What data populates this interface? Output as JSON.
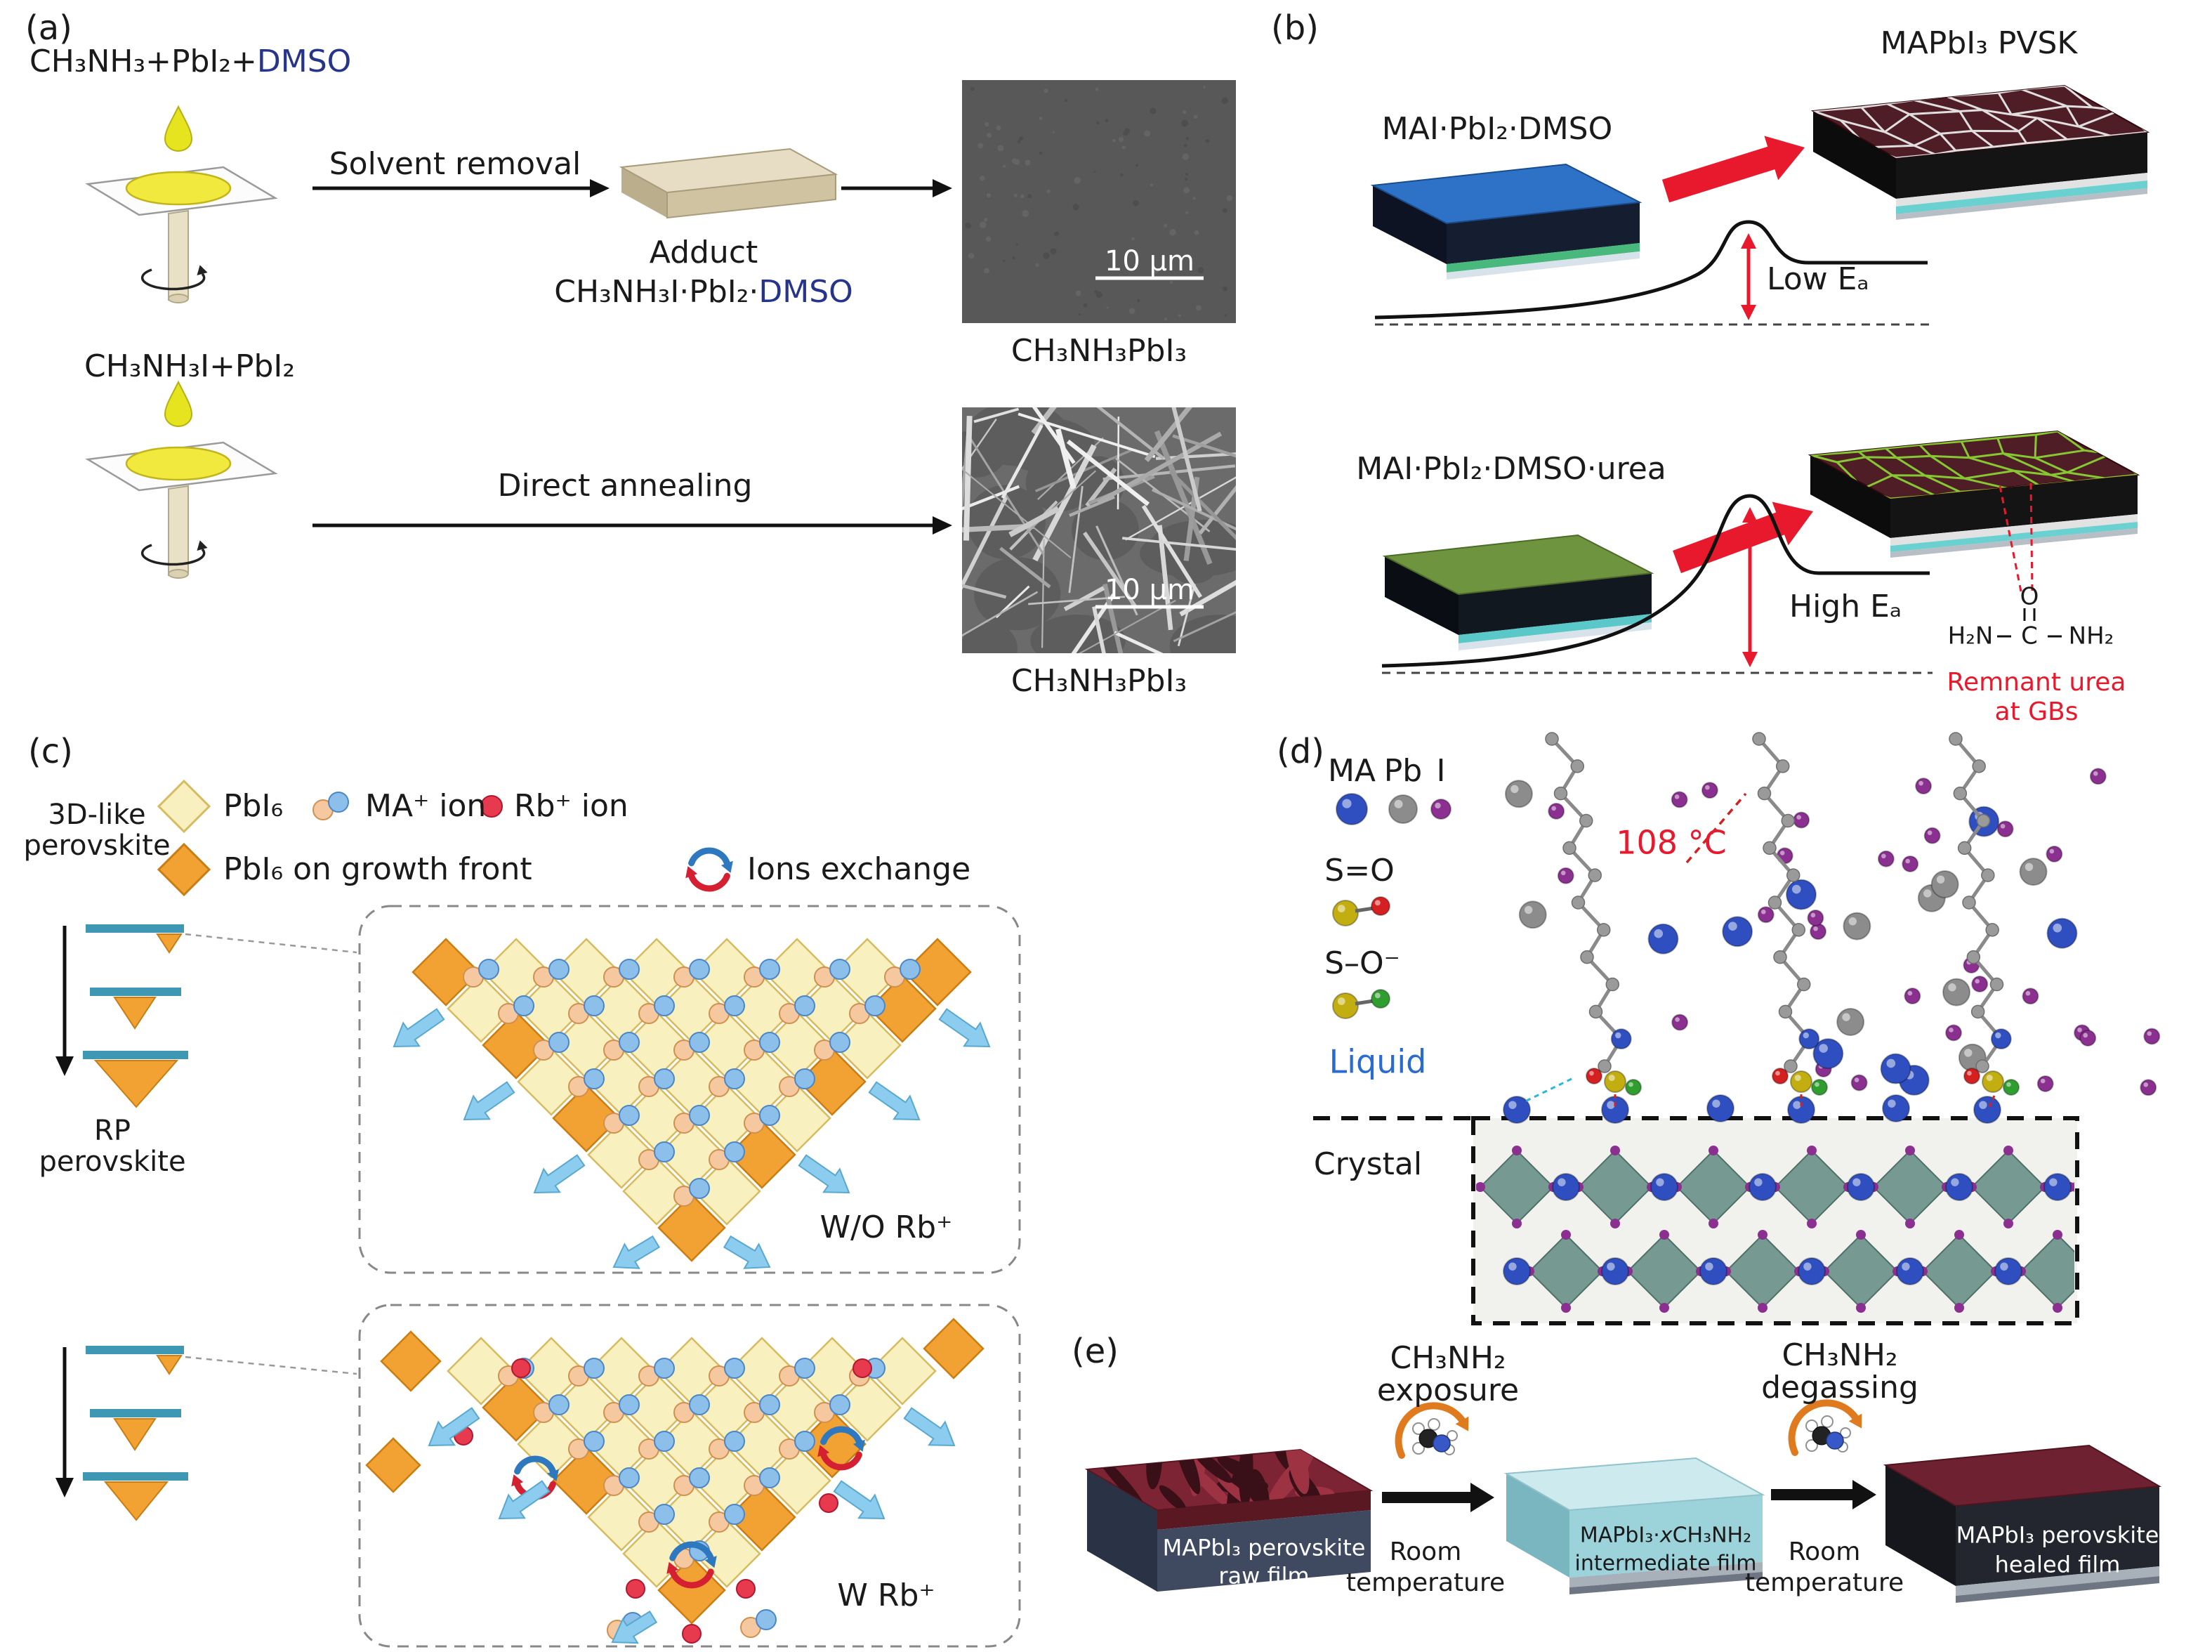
{
  "panels": {
    "a": {
      "label": "(a)",
      "formula_top_black": "CH₃NH₃+PbI₂+",
      "formula_top_blue": "DMSO",
      "solvent_removal": "Solvent removal",
      "adduct": "Adduct",
      "adduct_formula_black": "CH₃NH₃I·PbI₂·",
      "adduct_formula_blue": "DMSO",
      "sem1_scale": "10 μm",
      "sem1_product": "CH₃NH₃PbI₃",
      "formula_bottom": "CH₃NH₃I+PbI₂",
      "direct_annealing": "Direct annealing",
      "sem2_scale": "10 μm",
      "sem2_product": "CH₃NH₃PbI₃"
    },
    "b": {
      "label": "(b)",
      "precursor1": "MAI·PbI₂·DMSO",
      "product1": "MAPbI₃ PVSK",
      "low_ea": "Low Eₐ",
      "precursor2": "MAI·PbI₂·DMSO·urea",
      "high_ea": "High Eₐ",
      "urea": {
        "o": "O",
        "c": "C",
        "h2n": "H₂N",
        "nh2": "NH₂"
      },
      "remnant_line1": "Remnant urea",
      "remnant_line2": "at GBs"
    },
    "c": {
      "label": "(c)",
      "legend": {
        "pbi6": "PbI₆",
        "ma_ion": "MA⁺ ion",
        "rb_ion": "Rb⁺ ion",
        "pbi6_growth": "PbI₆ on growth front",
        "ions_exchange": "Ions exchange"
      },
      "threed_line1": "3D-like",
      "threed_line2": "perovskite",
      "rp_line1": "RP",
      "rp_line2": "perovskite",
      "wo_rb": "W/O Rb⁺",
      "w_rb": "W Rb⁺"
    },
    "d": {
      "label": "(d)",
      "legend": {
        "ma": "MA",
        "pb": "Pb",
        "i": "I",
        "so": "S=O",
        "so_minus": "S–O⁻"
      },
      "temp": "108 °C",
      "liquid": "Liquid",
      "crystal": "Crystal"
    },
    "e": {
      "label": "(e)",
      "exposure_line1": "CH₃NH₂",
      "exposure_line2": "exposure",
      "degassing_line1": "CH₃NH₂",
      "degassing_line2": "degassing",
      "film1_line1": "MAPbI₃ perovskite",
      "film1_line2": "raw film",
      "film2_line1_pre": "MAPbI₃·",
      "film2_line1_x": "x",
      "film2_line1_post": "CH₃NH₂",
      "film2_line2": "intermediate film",
      "film3_line1": "MAPbI₃ perovskite",
      "film3_line2": "healed film",
      "room1_line1": "Room",
      "room1_line2": "temperature",
      "room2_line1": "Room",
      "room2_line2": "temperature"
    }
  },
  "colors": {
    "accent_red": "#e8192c",
    "dmso_blue": "#27348b",
    "liquid_blue": "#2a6bd0",
    "pale_diamond": "#f8f0bf",
    "orange_diamond": "#f2a232",
    "teal_layer": "#3e98b4",
    "arrow_blue": "#8cccee",
    "rb_red": "#e83a4e",
    "ma_peach": "#f6c8a0",
    "ma_blue": "#8cc0ea",
    "sphere_blue": "#2f4fc0",
    "sphere_gray": "#8c8c8c",
    "sphere_purple": "#8b3090",
    "sphere_yellow": "#c2ae10",
    "sphere_red": "#d42020",
    "sphere_green": "#2f9e2f",
    "film_maroon": "#7c2433",
    "film_cyan": "#cdeaee",
    "green_slab": "#6f9440",
    "blue_slab": "#2e72c8",
    "pvsk_maroon": "#4e1d26",
    "grain_white": "#e0dede",
    "grain_green": "#86c832",
    "crystal_teal": "#6e938a"
  }
}
